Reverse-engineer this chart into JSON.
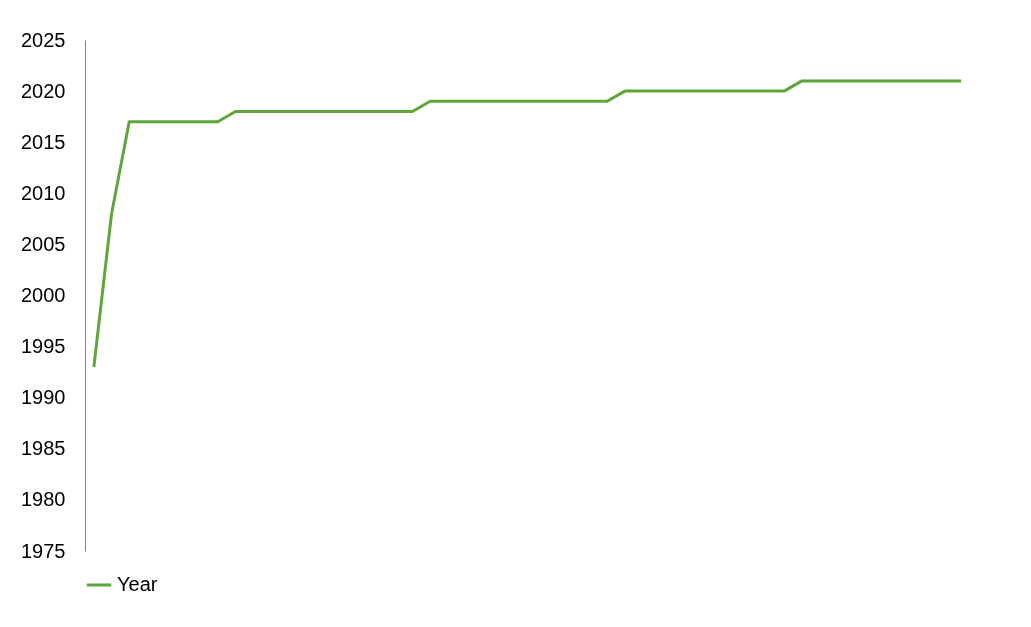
{
  "chart_data": {
    "type": "line",
    "categories": [
      null,
      null,
      null,
      null,
      null,
      null,
      null,
      null,
      null,
      null,
      null,
      null,
      null,
      null,
      null,
      null,
      null,
      null,
      null,
      null,
      null,
      null,
      null,
      null,
      null,
      null,
      null,
      null,
      null,
      null,
      null,
      null,
      null,
      null,
      null,
      null,
      null,
      null,
      null,
      null,
      null,
      null,
      null,
      null,
      null,
      null,
      null,
      null,
      null,
      null
    ],
    "series": [
      {
        "name": "Year",
        "color": "#5fa63a",
        "values": [
          1993,
          2008,
          2017,
          2017,
          2017,
          2017,
          2017,
          2017,
          2018,
          2018,
          2018,
          2018,
          2018,
          2018,
          2018,
          2018,
          2018,
          2018,
          2018,
          2019,
          2019,
          2019,
          2019,
          2019,
          2019,
          2019,
          2019,
          2019,
          2019,
          2019,
          2020,
          2020,
          2020,
          2020,
          2020,
          2020,
          2020,
          2020,
          2020,
          2020,
          2021,
          2021,
          2021,
          2021,
          2021,
          2021,
          2021,
          2021,
          2021,
          2021
        ]
      }
    ],
    "ylim": [
      1975,
      2025
    ],
    "yticks": [
      1975,
      1980,
      1985,
      1990,
      1995,
      2000,
      2005,
      2010,
      2015,
      2020,
      2025
    ],
    "grid": false,
    "legend": "bottom",
    "marker": "none",
    "line_style": "solid"
  }
}
